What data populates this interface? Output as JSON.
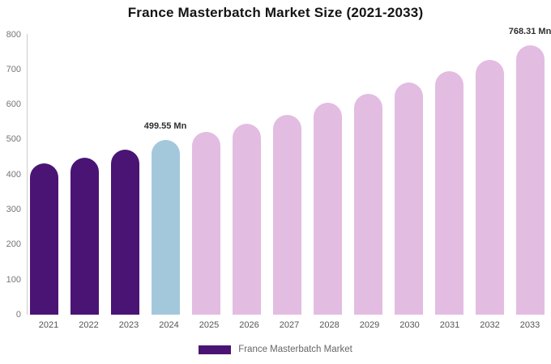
{
  "title": "France Masterbatch Market Size (2021-2033)",
  "colors": {
    "historical": "#4a1475",
    "current": "#a3c8dc",
    "forecast": "#e3bce2",
    "axis_line": "#cccccc",
    "legend_swatch": "#4a1475"
  },
  "legend": {
    "label": "France Masterbatch Market"
  },
  "chart_data": {
    "type": "bar",
    "title": "France Masterbatch Market Size (2021-2033)",
    "categories": [
      "2021",
      "2022",
      "2023",
      "2024",
      "2025",
      "2026",
      "2027",
      "2028",
      "2029",
      "2030",
      "2031",
      "2032",
      "2033"
    ],
    "values": [
      431,
      447,
      471,
      499.55,
      521,
      546,
      571,
      604,
      631,
      662,
      695,
      728,
      768.31
    ],
    "roles": [
      "historical",
      "historical",
      "historical",
      "current",
      "forecast",
      "forecast",
      "forecast",
      "forecast",
      "forecast",
      "forecast",
      "forecast",
      "forecast",
      "forecast"
    ],
    "annotations": [
      {
        "category": "2024",
        "text": "499.55 Mn"
      },
      {
        "category": "2033",
        "text": "768.31 Mn"
      }
    ],
    "unit": "Mn",
    "ylim": [
      0,
      800
    ],
    "yticks": [
      0,
      100,
      200,
      300,
      400,
      500,
      600,
      700,
      800
    ],
    "grid": false,
    "legend_position": "bottom",
    "series_name": "France Masterbatch Market"
  }
}
